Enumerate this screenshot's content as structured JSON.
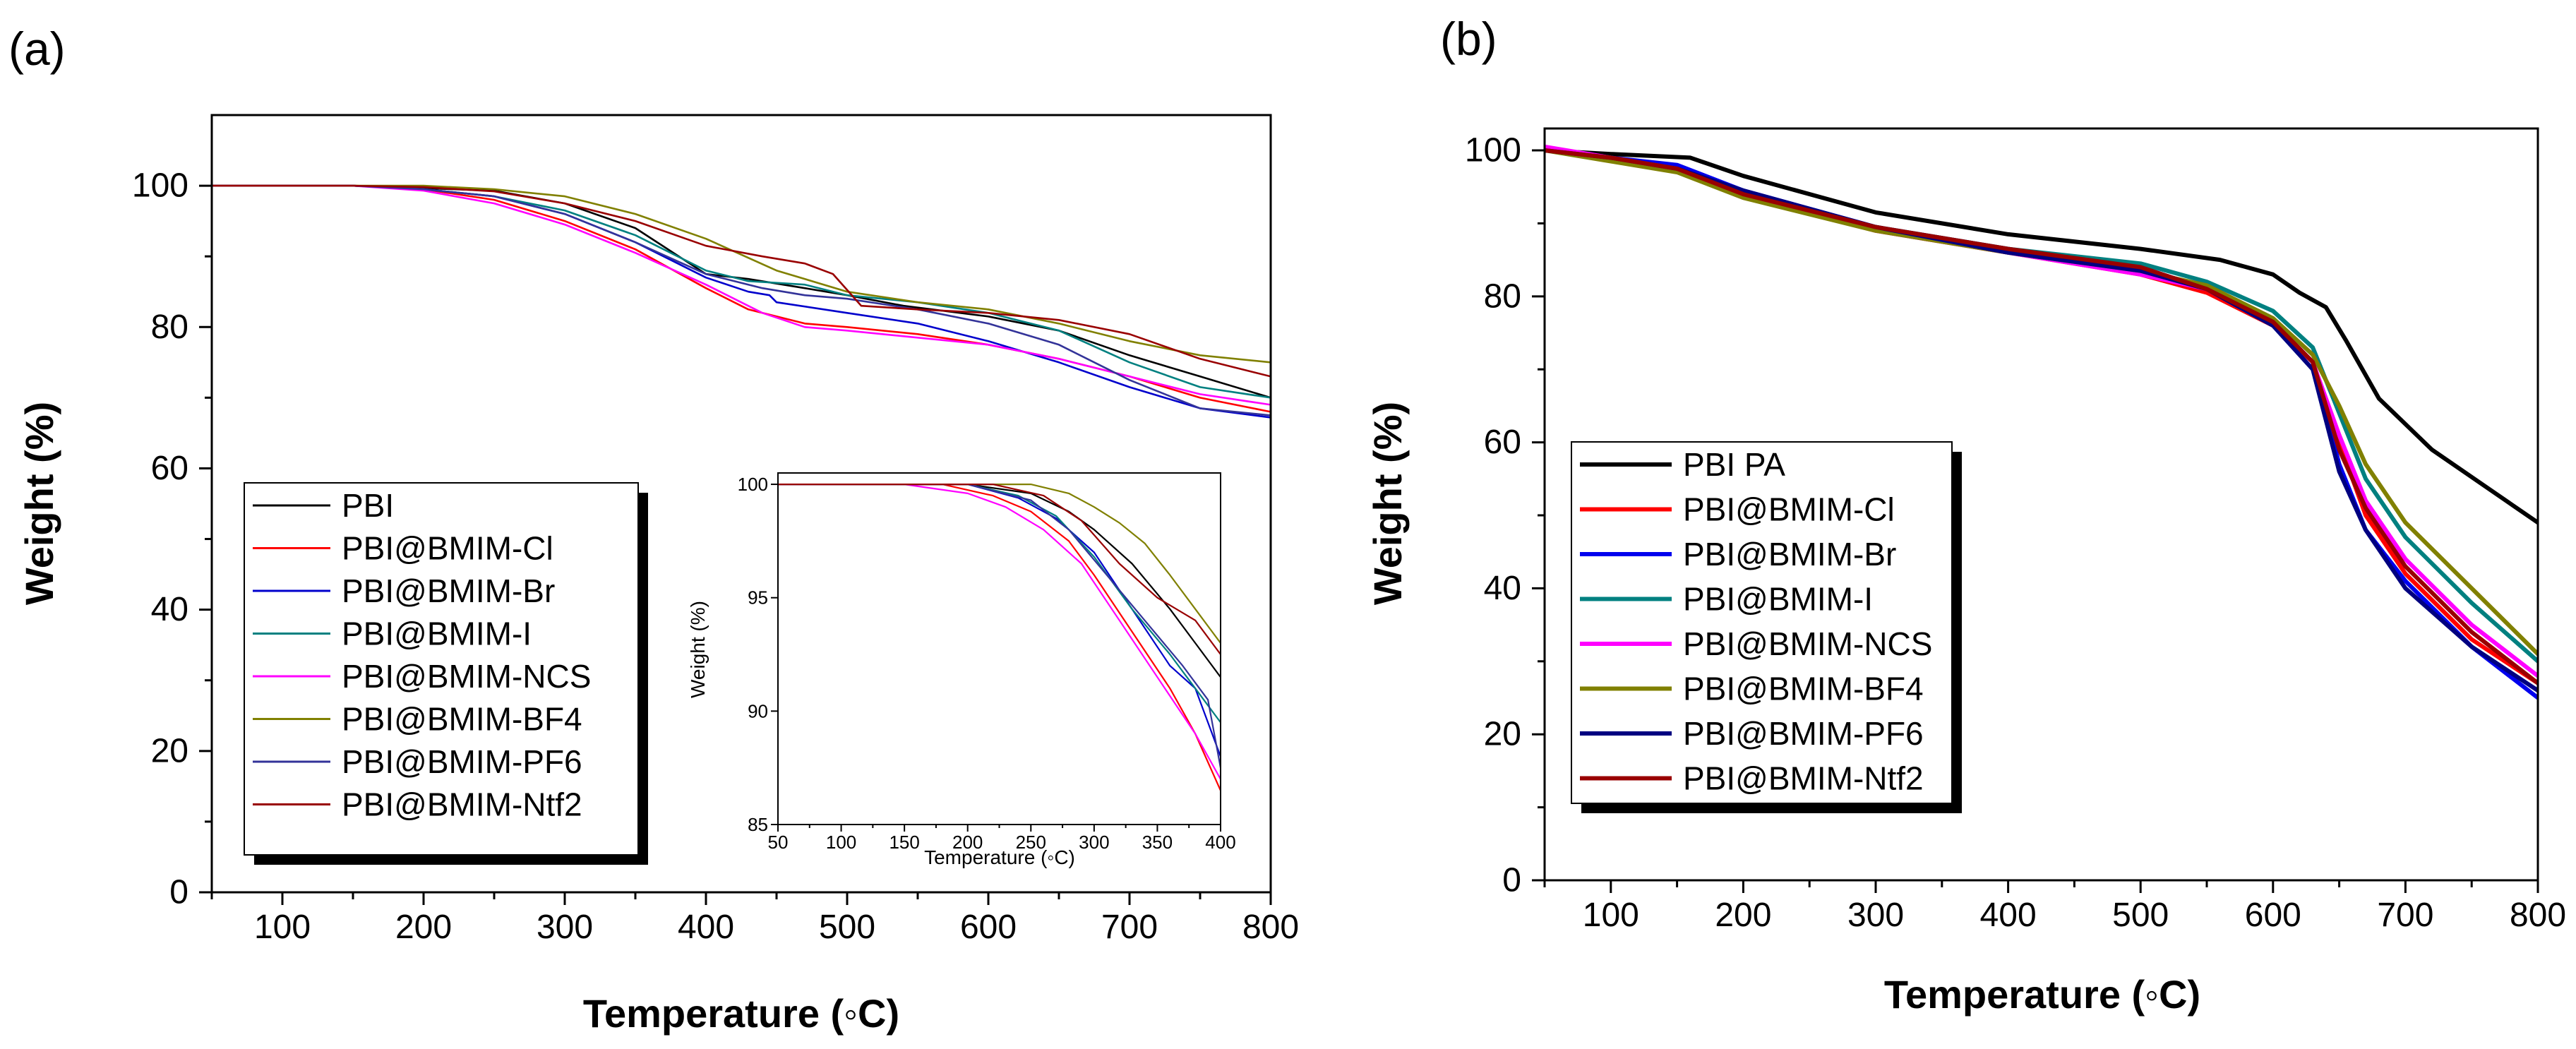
{
  "chart_data": [
    {
      "type": "line",
      "panel_label": "(a)",
      "xlabel": "Temperature (◦C)",
      "ylabel": "Weight (%)",
      "xlim": [
        50,
        800
      ],
      "ylim": [
        0,
        110
      ],
      "xticks": [
        100,
        200,
        300,
        400,
        500,
        600,
        700,
        800
      ],
      "yticks": [
        0,
        20,
        40,
        60,
        80,
        100
      ],
      "legend_position": "bottom-left",
      "series": [
        {
          "name": "PBI",
          "color": "#000000",
          "x": [
            50,
            150,
            250,
            300,
            350,
            400,
            430,
            470,
            500,
            540,
            600,
            650,
            700,
            750,
            800
          ],
          "y": [
            100,
            100,
            99.3,
            97.5,
            94,
            87.5,
            86.8,
            85.5,
            84.5,
            83,
            81.5,
            79.5,
            76,
            73,
            70
          ]
        },
        {
          "name": "PBI@BMIM-Cl",
          "color": "#ff0000",
          "x": [
            50,
            150,
            200,
            250,
            300,
            350,
            400,
            430,
            470,
            500,
            550,
            600,
            650,
            700,
            750,
            800
          ],
          "y": [
            100,
            100,
            99.5,
            98,
            95,
            91,
            85.5,
            82.5,
            80.5,
            80,
            79,
            77.5,
            75.5,
            73,
            70,
            68
          ]
        },
        {
          "name": "PBI@BMIM-Br",
          "color": "#0000cc",
          "x": [
            50,
            150,
            200,
            250,
            300,
            350,
            400,
            430,
            445,
            450,
            500,
            550,
            600,
            650,
            700,
            750,
            800
          ],
          "y": [
            100,
            100,
            99.5,
            98.5,
            96,
            92,
            87,
            85,
            84.5,
            83.5,
            82,
            80.5,
            78,
            75,
            71.5,
            68.5,
            67.2
          ]
        },
        {
          "name": "PBI@BMIM-I",
          "color": "#008080",
          "x": [
            50,
            150,
            200,
            250,
            300,
            350,
            400,
            430,
            470,
            500,
            550,
            600,
            650,
            700,
            750,
            800
          ],
          "y": [
            100,
            100,
            99.5,
            98.5,
            96.5,
            93,
            88,
            86.5,
            86,
            84.5,
            83.5,
            82,
            79.5,
            75,
            71.5,
            70
          ]
        },
        {
          "name": "PBI@BMIM-NCS",
          "color": "#ff00ff",
          "x": [
            50,
            150,
            200,
            250,
            300,
            350,
            400,
            440,
            470,
            500,
            550,
            600,
            650,
            700,
            750,
            800
          ],
          "y": [
            100,
            100,
            99.3,
            97.5,
            94.5,
            90.5,
            86,
            82,
            80,
            79.5,
            78.5,
            77.5,
            75.5,
            73,
            70.5,
            69
          ]
        },
        {
          "name": "PBI@BMIM-BF4",
          "color": "#808000",
          "x": [
            50,
            150,
            200,
            250,
            300,
            350,
            400,
            450,
            500,
            550,
            600,
            650,
            700,
            750,
            800
          ],
          "y": [
            100,
            100,
            100,
            99.5,
            98.5,
            96,
            92.5,
            88,
            85,
            83.5,
            82.5,
            80.5,
            78,
            76,
            75
          ]
        },
        {
          "name": "PBI@BMIM-PF6",
          "color": "#333399",
          "x": [
            50,
            150,
            200,
            250,
            300,
            350,
            400,
            440,
            470,
            500,
            550,
            600,
            650,
            700,
            750,
            800
          ],
          "y": [
            100,
            100,
            99.5,
            98.5,
            96,
            92,
            87.5,
            85.5,
            84.5,
            84,
            82.5,
            80.5,
            77.5,
            72.5,
            68.5,
            67.5
          ]
        },
        {
          "name": "PBI@BMIM-Ntf2",
          "color": "#990000",
          "x": [
            50,
            150,
            200,
            250,
            300,
            350,
            400,
            440,
            470,
            490,
            510,
            550,
            600,
            650,
            700,
            750,
            800
          ],
          "y": [
            100,
            100,
            99.8,
            99.2,
            97.5,
            95,
            91.5,
            90,
            89,
            87.5,
            83,
            82.5,
            82,
            81,
            79,
            75.5,
            73
          ]
        }
      ]
    },
    {
      "type": "line",
      "role": "inset",
      "xlabel": "Temperature (◦C)",
      "ylabel": "Weight (%)",
      "xlim": [
        50,
        400
      ],
      "ylim": [
        85,
        100.5
      ],
      "xticks": [
        50,
        100,
        150,
        200,
        250,
        300,
        350,
        400
      ],
      "yticks": [
        85,
        90,
        95,
        100
      ],
      "series": [
        {
          "name": "PBI",
          "color": "#000000",
          "x": [
            50,
            200,
            250,
            280,
            300,
            330,
            360,
            380,
            400
          ],
          "y": [
            100,
            100,
            99.6,
            98.8,
            98,
            96.5,
            94.5,
            93,
            91.5
          ]
        },
        {
          "name": "PBI@BMIM-Cl",
          "color": "#ff0000",
          "x": [
            50,
            180,
            220,
            250,
            280,
            300,
            330,
            360,
            380,
            400
          ],
          "y": [
            100,
            100,
            99.5,
            98.8,
            97.5,
            96,
            93.5,
            91,
            89,
            86.5
          ]
        },
        {
          "name": "PBI@BMIM-Br",
          "color": "#0000cc",
          "x": [
            50,
            200,
            240,
            270,
            300,
            330,
            360,
            380,
            400
          ],
          "y": [
            100,
            100,
            99.4,
            98.5,
            97,
            94.5,
            92,
            91,
            88
          ]
        },
        {
          "name": "PBI@BMIM-I",
          "color": "#008080",
          "x": [
            50,
            200,
            240,
            270,
            300,
            330,
            360,
            380,
            400
          ],
          "y": [
            100,
            100,
            99.5,
            98.6,
            96.8,
            94.5,
            92.5,
            91,
            89.5
          ]
        },
        {
          "name": "PBI@BMIM-NCS",
          "color": "#ff00ff",
          "x": [
            50,
            150,
            200,
            230,
            260,
            290,
            320,
            350,
            380,
            400
          ],
          "y": [
            100,
            100,
            99.6,
            99,
            98,
            96.5,
            94,
            91.5,
            89,
            87
          ]
        },
        {
          "name": "PBI@BMIM-BF4",
          "color": "#808000",
          "x": [
            50,
            250,
            280,
            300,
            320,
            340,
            360,
            380,
            400
          ],
          "y": [
            100,
            100,
            99.6,
            99,
            98.3,
            97.4,
            96,
            94.5,
            93
          ]
        },
        {
          "name": "PBI@BMIM-PF6",
          "color": "#333399",
          "x": [
            50,
            200,
            250,
            280,
            310,
            340,
            370,
            390,
            400
          ],
          "y": [
            100,
            100,
            99.3,
            98,
            96,
            94,
            92,
            90.5,
            87.5
          ]
        },
        {
          "name": "PBI@BMIM-Ntf2",
          "color": "#990000",
          "x": [
            50,
            220,
            260,
            290,
            320,
            350,
            380,
            400
          ],
          "y": [
            100,
            100,
            99.5,
            98.4,
            96.5,
            95,
            94,
            92.5
          ]
        }
      ]
    },
    {
      "type": "line",
      "panel_label": "(b)",
      "xlabel": "Temperature (◦C)",
      "ylabel": "Weight (%)",
      "xlim": [
        50,
        800
      ],
      "ylim": [
        0,
        103
      ],
      "xticks": [
        100,
        200,
        300,
        400,
        500,
        600,
        700,
        800
      ],
      "yticks": [
        0,
        20,
        40,
        60,
        80,
        100
      ],
      "legend_position": "middle-left",
      "series": [
        {
          "name": "PBI PA",
          "color": "#000000",
          "x": [
            50,
            100,
            160,
            200,
            300,
            400,
            500,
            560,
            600,
            620,
            640,
            655,
            680,
            720,
            760,
            800
          ],
          "y": [
            100,
            99.5,
            99,
            96.5,
            91.5,
            88.5,
            86.5,
            85,
            83,
            80.5,
            78.5,
            74,
            66,
            59,
            54,
            49
          ]
        },
        {
          "name": "PBI@BMIM-Cl",
          "color": "#ff0000",
          "x": [
            50,
            100,
            150,
            200,
            300,
            400,
            500,
            550,
            600,
            630,
            650,
            670,
            700,
            750,
            800
          ],
          "y": [
            100,
            99,
            97.5,
            94,
            89,
            86,
            83,
            80.5,
            76,
            71,
            60,
            50,
            42,
            33,
            27
          ]
        },
        {
          "name": "PBI@BMIM-Br",
          "color": "#0000ee",
          "x": [
            50,
            100,
            150,
            200,
            300,
            400,
            500,
            550,
            600,
            630,
            650,
            670,
            700,
            750,
            800
          ],
          "y": [
            100,
            99,
            98,
            94.5,
            89.5,
            86.5,
            84,
            81,
            76.5,
            71,
            57,
            48,
            41,
            32,
            25
          ]
        },
        {
          "name": "PBI@BMIM-I",
          "color": "#008080",
          "x": [
            50,
            100,
            150,
            200,
            300,
            400,
            500,
            550,
            600,
            630,
            650,
            670,
            700,
            750,
            800
          ],
          "y": [
            100,
            99,
            97.5,
            94,
            89.5,
            86.5,
            84.5,
            82,
            78,
            73,
            64,
            55,
            47,
            38,
            30
          ]
        },
        {
          "name": "PBI@BMIM-NCS",
          "color": "#ff00ff",
          "x": [
            50,
            100,
            150,
            200,
            300,
            400,
            500,
            550,
            600,
            630,
            650,
            670,
            700,
            750,
            800
          ],
          "y": [
            100.5,
            99,
            97.5,
            94,
            89,
            86,
            83,
            81,
            76.5,
            71,
            61,
            52,
            44,
            35,
            28
          ]
        },
        {
          "name": "PBI@BMIM-BF4",
          "color": "#808000",
          "x": [
            50,
            100,
            150,
            200,
            300,
            400,
            500,
            550,
            600,
            630,
            650,
            670,
            700,
            750,
            800
          ],
          "y": [
            100,
            98.5,
            97,
            93.5,
            89,
            86,
            83.5,
            81.5,
            77,
            72,
            65,
            57,
            49,
            40,
            31
          ]
        },
        {
          "name": "PBI@BMIM-PF6",
          "color": "#000080",
          "x": [
            50,
            100,
            150,
            200,
            300,
            400,
            500,
            550,
            600,
            630,
            650,
            670,
            700,
            750,
            800
          ],
          "y": [
            100,
            99,
            97.5,
            94.5,
            89.5,
            86,
            83.5,
            81,
            76,
            70,
            56,
            48,
            40,
            32,
            26
          ]
        },
        {
          "name": "PBI@BMIM-Ntf2",
          "color": "#990000",
          "x": [
            50,
            100,
            150,
            200,
            300,
            400,
            500,
            550,
            600,
            630,
            650,
            670,
            700,
            750,
            800
          ],
          "y": [
            100,
            99,
            97.5,
            94,
            89.5,
            86.5,
            84,
            81,
            76.5,
            71,
            59,
            51,
            43,
            34,
            27
          ]
        }
      ]
    }
  ]
}
